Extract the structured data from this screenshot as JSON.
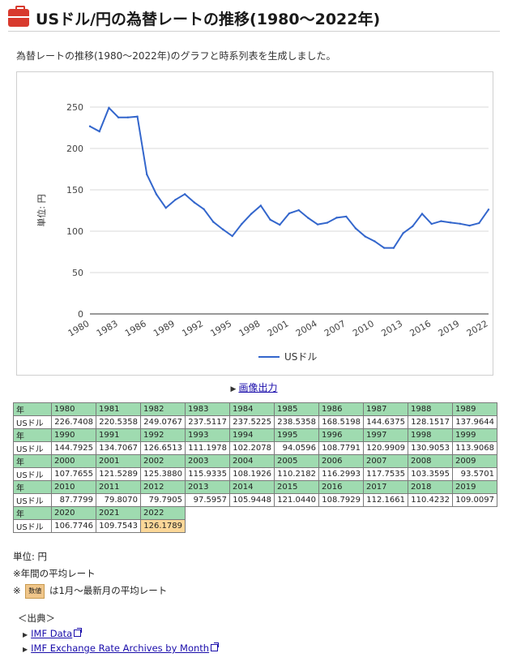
{
  "page": {
    "title": "USドル/円の為替レートの推移(1980～2022年)",
    "intro": "為替レートの推移(1980～2022年)のグラフと時系列表を生成しました。",
    "export_label": "画像出力",
    "icon": "toolbox-icon"
  },
  "chart_data": {
    "type": "line",
    "ylabel": "単位: 円",
    "xlabel": "",
    "ylim": [
      0,
      250
    ],
    "yticks": [
      0,
      50,
      100,
      150,
      200,
      250
    ],
    "xticks": [
      "1980",
      "1983",
      "1986",
      "1989",
      "1992",
      "1995",
      "1998",
      "2001",
      "2004",
      "2007",
      "2010",
      "2013",
      "2016",
      "2019",
      "2022"
    ],
    "grid": true,
    "legend": "bottom-center",
    "x": [
      1980,
      1981,
      1982,
      1983,
      1984,
      1985,
      1986,
      1987,
      1988,
      1989,
      1990,
      1991,
      1992,
      1993,
      1994,
      1995,
      1996,
      1997,
      1998,
      1999,
      2000,
      2001,
      2002,
      2003,
      2004,
      2005,
      2006,
      2007,
      2008,
      2009,
      2010,
      2011,
      2012,
      2013,
      2014,
      2015,
      2016,
      2017,
      2018,
      2019,
      2020,
      2021,
      2022
    ],
    "series": [
      {
        "name": "USドル",
        "color": "#3366cc",
        "values": [
          226.7408,
          220.5358,
          249.0767,
          237.5117,
          237.5225,
          238.5358,
          168.5198,
          144.6375,
          128.1517,
          137.9644,
          144.7925,
          134.7067,
          126.6513,
          111.1978,
          102.2078,
          94.0596,
          108.7791,
          120.9909,
          130.9053,
          113.9068,
          107.7655,
          121.5289,
          125.388,
          115.9335,
          108.1926,
          110.2182,
          116.2993,
          117.7535,
          103.3595,
          93.5701,
          87.7799,
          79.807,
          79.7905,
          97.5957,
          105.9448,
          121.044,
          108.7929,
          112.1661,
          110.4232,
          109.0097,
          106.7746,
          109.7543,
          126.1789
        ]
      }
    ]
  },
  "table": {
    "year_header": "年",
    "row_header": "USドル",
    "rows": [
      {
        "years": [
          "1980",
          "1981",
          "1982",
          "1983",
          "1984",
          "1985",
          "1986",
          "1987",
          "1988",
          "1989"
        ],
        "values": [
          "226.7408",
          "220.5358",
          "249.0767",
          "237.5117",
          "237.5225",
          "238.5358",
          "168.5198",
          "144.6375",
          "128.1517",
          "137.9644"
        ]
      },
      {
        "years": [
          "1990",
          "1991",
          "1992",
          "1993",
          "1994",
          "1995",
          "1996",
          "1997",
          "1998",
          "1999"
        ],
        "values": [
          "144.7925",
          "134.7067",
          "126.6513",
          "111.1978",
          "102.2078",
          "94.0596",
          "108.7791",
          "120.9909",
          "130.9053",
          "113.9068"
        ]
      },
      {
        "years": [
          "2000",
          "2001",
          "2002",
          "2003",
          "2004",
          "2005",
          "2006",
          "2007",
          "2008",
          "2009"
        ],
        "values": [
          "107.7655",
          "121.5289",
          "125.3880",
          "115.9335",
          "108.1926",
          "110.2182",
          "116.2993",
          "117.7535",
          "103.3595",
          "93.5701"
        ]
      },
      {
        "years": [
          "2010",
          "2011",
          "2012",
          "2013",
          "2014",
          "2015",
          "2016",
          "2017",
          "2018",
          "2019"
        ],
        "values": [
          "87.7799",
          "79.8070",
          "79.7905",
          "97.5957",
          "105.9448",
          "121.0440",
          "108.7929",
          "112.1661",
          "110.4232",
          "109.0097"
        ]
      },
      {
        "years": [
          "2020",
          "2021",
          "2022"
        ],
        "values": [
          "106.7746",
          "109.7543",
          "126.1789"
        ]
      }
    ],
    "highlight_color": "#fbd798"
  },
  "notes": {
    "unit": "単位: 円",
    "annual": "※年間の平均レート",
    "prefix": "※",
    "badge": "数値",
    "badge_text": "は1月～最新月の平均レート"
  },
  "sources": {
    "heading": "＜出典＞",
    "links": [
      {
        "label": "IMF Data"
      },
      {
        "label": "IMF Exchange Rate Archives by Month"
      }
    ]
  }
}
